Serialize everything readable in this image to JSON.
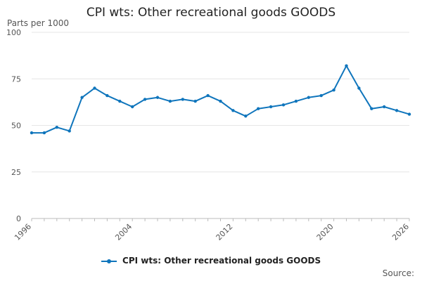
{
  "chart_data": {
    "type": "line",
    "title": "CPI wts: Other recreational goods GOODS",
    "ylabel": "Parts per 1000",
    "xlabel": "",
    "ylim": [
      0,
      100
    ],
    "xlim": [
      1996,
      2026
    ],
    "y_ticks": [
      "0",
      "25",
      "50",
      "75",
      "100"
    ],
    "x_tick_labels": [
      "1996",
      "2004",
      "2012",
      "2020",
      "2026"
    ],
    "x_tick_values": [
      1996,
      2004,
      2012,
      2020,
      2026
    ],
    "grid": "horizontal",
    "legend_position": "bottom",
    "series": [
      {
        "name": "CPI wts: Other recreational goods GOODS",
        "color": "#0f75bc",
        "x": [
          1996,
          1997,
          1998,
          1999,
          2000,
          2001,
          2002,
          2003,
          2004,
          2005,
          2006,
          2007,
          2008,
          2009,
          2010,
          2011,
          2012,
          2013,
          2014,
          2015,
          2016,
          2017,
          2018,
          2019,
          2020,
          2021,
          2022,
          2023,
          2024,
          2025,
          2026
        ],
        "values": [
          46,
          46,
          49,
          47,
          65,
          70,
          66,
          63,
          60,
          64,
          65,
          63,
          64,
          63,
          66,
          63,
          58,
          55,
          59,
          60,
          61,
          63,
          65,
          66,
          69,
          82,
          70,
          59,
          60,
          58,
          56
        ]
      }
    ]
  },
  "source_label": "Source:"
}
